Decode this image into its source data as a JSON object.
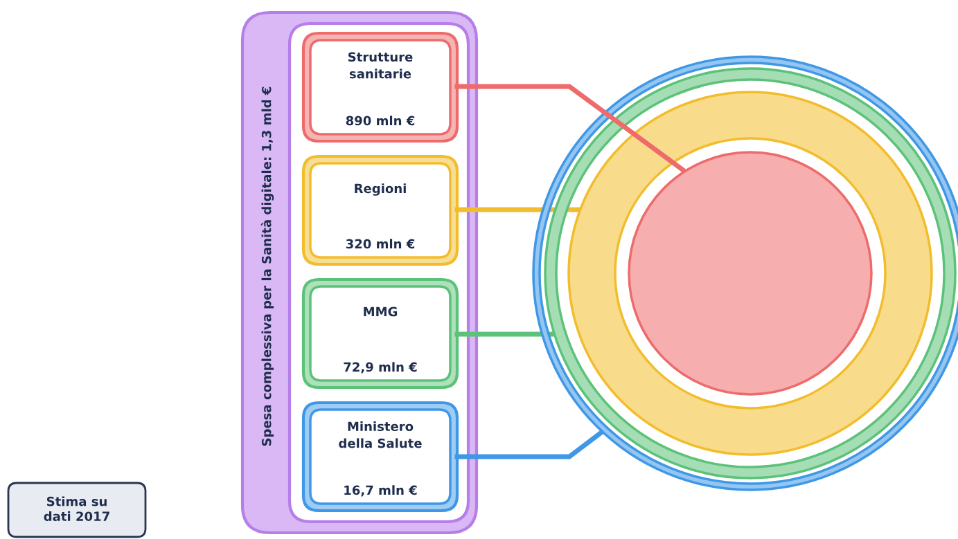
{
  "chart_data": {
    "type": "other",
    "title": "Spesa complessiva per la Sanità digitale: 1,3 mld €",
    "categories": [
      "Strutture\nsanitarie",
      "Regioni",
      "MMG",
      "Ministero\ndella Salute"
    ],
    "values": [
      890,
      320,
      72.9,
      16.7
    ],
    "value_labels": [
      "890 mln €",
      "320 mln €",
      "72,9 mln €",
      "16,7 mln €"
    ],
    "colors": [
      "#ee6b6b",
      "#f2bd2c",
      "#5cc279",
      "#3f98e6"
    ],
    "annotations": [
      "Stima su\ndati 2017"
    ]
  }
}
